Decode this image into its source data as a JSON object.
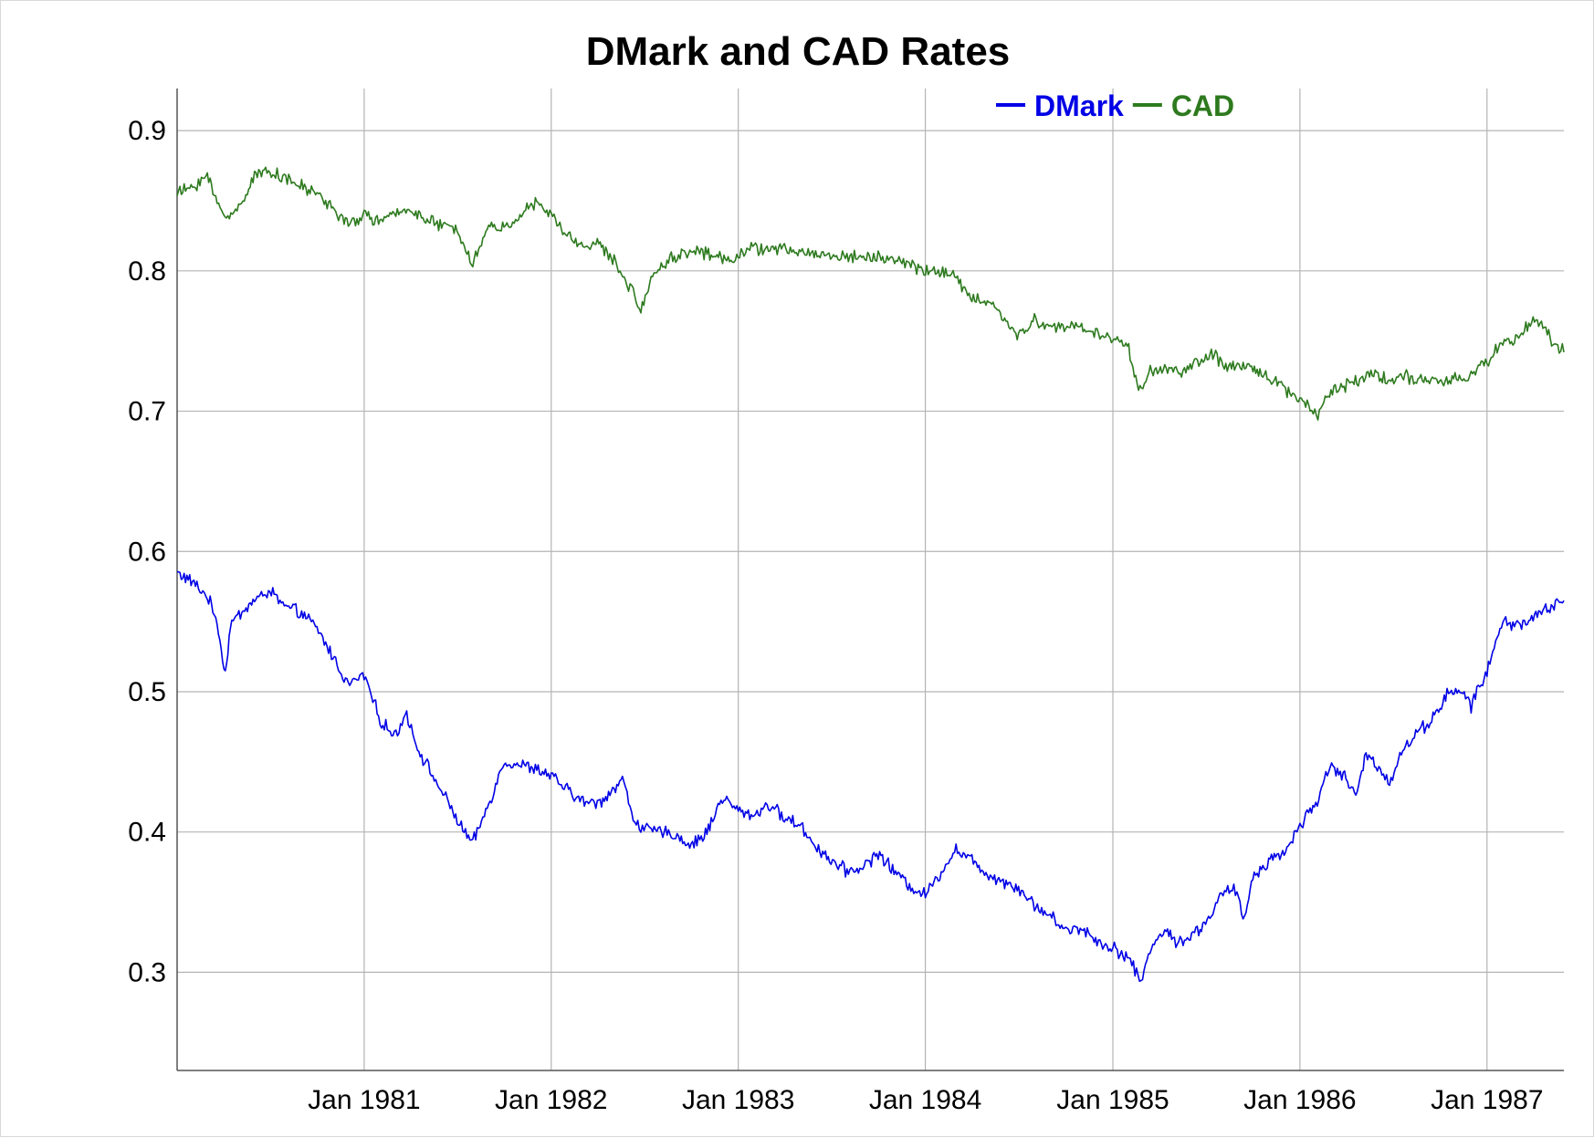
{
  "chart_data": {
    "type": "line",
    "title": "DMark and CAD Rates",
    "xlabel": "",
    "ylabel": "",
    "x_range": [
      "1980-01-02",
      "1987-05-31"
    ],
    "ylim": [
      0.23,
      0.93
    ],
    "y_ticks": [
      0.3,
      0.4,
      0.5,
      0.6,
      0.7,
      0.8,
      0.9
    ],
    "y_tick_labels": [
      "0.3",
      "0.4",
      "0.5",
      "0.6",
      "0.7",
      "0.8",
      "0.9"
    ],
    "x_ticks": [
      "1981-01-01",
      "1982-01-01",
      "1983-01-01",
      "1984-01-01",
      "1985-01-01",
      "1986-01-01",
      "1987-01-01"
    ],
    "x_tick_labels": [
      "Jan 1981",
      "Jan 1982",
      "Jan 1983",
      "Jan 1984",
      "Jan 1985",
      "Jan 1986",
      "Jan 1987"
    ],
    "grid": true,
    "legend_position": "top-right",
    "series": [
      {
        "name": "DMark",
        "color": "#0000e6",
        "points": [
          [
            "1980-01-02",
            0.585
          ],
          [
            "1980-02-01",
            0.578
          ],
          [
            "1980-03-01",
            0.568
          ],
          [
            "1980-03-20",
            0.55
          ],
          [
            "1980-04-05",
            0.512
          ],
          [
            "1980-04-15",
            0.548
          ],
          [
            "1980-05-10",
            0.558
          ],
          [
            "1980-06-01",
            0.565
          ],
          [
            "1980-07-01",
            0.572
          ],
          [
            "1980-08-01",
            0.56
          ],
          [
            "1980-09-01",
            0.556
          ],
          [
            "1980-10-01",
            0.545
          ],
          [
            "1980-11-01",
            0.525
          ],
          [
            "1980-12-01",
            0.505
          ],
          [
            "1981-01-01",
            0.512
          ],
          [
            "1981-02-01",
            0.48
          ],
          [
            "1981-03-01",
            0.468
          ],
          [
            "1981-03-25",
            0.485
          ],
          [
            "1981-04-15",
            0.46
          ],
          [
            "1981-05-15",
            0.44
          ],
          [
            "1981-06-15",
            0.42
          ],
          [
            "1981-07-15",
            0.4
          ],
          [
            "1981-08-01",
            0.392
          ],
          [
            "1981-09-01",
            0.42
          ],
          [
            "1981-10-01",
            0.45
          ],
          [
            "1981-11-01",
            0.448
          ],
          [
            "1981-12-01",
            0.445
          ],
          [
            "1982-01-01",
            0.44
          ],
          [
            "1982-02-01",
            0.43
          ],
          [
            "1982-03-01",
            0.422
          ],
          [
            "1982-04-01",
            0.42
          ],
          [
            "1982-05-01",
            0.43
          ],
          [
            "1982-05-20",
            0.438
          ],
          [
            "1982-06-10",
            0.41
          ],
          [
            "1982-07-01",
            0.402
          ],
          [
            "1982-08-01",
            0.4
          ],
          [
            "1982-09-01",
            0.398
          ],
          [
            "1982-10-01",
            0.39
          ],
          [
            "1982-11-01",
            0.4
          ],
          [
            "1982-12-01",
            0.425
          ],
          [
            "1983-01-01",
            0.415
          ],
          [
            "1983-02-01",
            0.412
          ],
          [
            "1983-03-01",
            0.42
          ],
          [
            "1983-04-01",
            0.41
          ],
          [
            "1983-05-01",
            0.405
          ],
          [
            "1983-06-01",
            0.39
          ],
          [
            "1983-07-01",
            0.38
          ],
          [
            "1983-08-01",
            0.372
          ],
          [
            "1983-09-01",
            0.375
          ],
          [
            "1983-10-01",
            0.385
          ],
          [
            "1983-11-01",
            0.372
          ],
          [
            "1983-12-01",
            0.362
          ],
          [
            "1984-01-01",
            0.355
          ],
          [
            "1984-02-01",
            0.372
          ],
          [
            "1984-03-01",
            0.388
          ],
          [
            "1984-04-01",
            0.38
          ],
          [
            "1984-05-01",
            0.37
          ],
          [
            "1984-06-01",
            0.365
          ],
          [
            "1984-07-01",
            0.36
          ],
          [
            "1984-08-01",
            0.348
          ],
          [
            "1984-09-01",
            0.34
          ],
          [
            "1984-10-01",
            0.33
          ],
          [
            "1984-11-01",
            0.332
          ],
          [
            "1984-12-01",
            0.322
          ],
          [
            "1985-01-01",
            0.318
          ],
          [
            "1985-02-01",
            0.31
          ],
          [
            "1985-02-25",
            0.293
          ],
          [
            "1985-03-20",
            0.322
          ],
          [
            "1985-04-15",
            0.33
          ],
          [
            "1985-05-01",
            0.322
          ],
          [
            "1985-06-01",
            0.325
          ],
          [
            "1985-07-01",
            0.335
          ],
          [
            "1985-08-01",
            0.355
          ],
          [
            "1985-08-25",
            0.36
          ],
          [
            "1985-09-15",
            0.338
          ],
          [
            "1985-10-01",
            0.368
          ],
          [
            "1985-11-01",
            0.38
          ],
          [
            "1985-12-01",
            0.385
          ],
          [
            "1986-01-01",
            0.405
          ],
          [
            "1986-02-01",
            0.42
          ],
          [
            "1986-03-01",
            0.448
          ],
          [
            "1986-04-01",
            0.438
          ],
          [
            "1986-04-20",
            0.425
          ],
          [
            "1986-05-10",
            0.455
          ],
          [
            "1986-06-01",
            0.448
          ],
          [
            "1986-06-25",
            0.435
          ],
          [
            "1986-07-15",
            0.455
          ],
          [
            "1986-08-15",
            0.47
          ],
          [
            "1986-09-15",
            0.48
          ],
          [
            "1986-10-15",
            0.498
          ],
          [
            "1986-11-15",
            0.5
          ],
          [
            "1986-12-01",
            0.49
          ],
          [
            "1987-01-01",
            0.515
          ],
          [
            "1987-02-01",
            0.55
          ],
          [
            "1987-03-01",
            0.548
          ],
          [
            "1987-04-01",
            0.552
          ],
          [
            "1987-05-01",
            0.56
          ],
          [
            "1987-05-31",
            0.565
          ]
        ]
      },
      {
        "name": "CAD",
        "color": "#2d7a1e",
        "points": [
          [
            "1980-01-02",
            0.855
          ],
          [
            "1980-02-01",
            0.86
          ],
          [
            "1980-03-01",
            0.868
          ],
          [
            "1980-03-20",
            0.848
          ],
          [
            "1980-04-10",
            0.838
          ],
          [
            "1980-05-01",
            0.845
          ],
          [
            "1980-06-01",
            0.868
          ],
          [
            "1980-07-01",
            0.872
          ],
          [
            "1980-08-01",
            0.865
          ],
          [
            "1980-09-01",
            0.86
          ],
          [
            "1980-10-01",
            0.855
          ],
          [
            "1980-11-01",
            0.845
          ],
          [
            "1980-12-01",
            0.832
          ],
          [
            "1981-01-01",
            0.84
          ],
          [
            "1981-02-01",
            0.835
          ],
          [
            "1981-03-01",
            0.84
          ],
          [
            "1981-04-01",
            0.845
          ],
          [
            "1981-05-01",
            0.836
          ],
          [
            "1981-06-01",
            0.832
          ],
          [
            "1981-07-01",
            0.83
          ],
          [
            "1981-08-01",
            0.805
          ],
          [
            "1981-09-01",
            0.832
          ],
          [
            "1981-10-01",
            0.83
          ],
          [
            "1981-11-01",
            0.84
          ],
          [
            "1981-12-01",
            0.848
          ],
          [
            "1982-01-01",
            0.84
          ],
          [
            "1982-02-01",
            0.825
          ],
          [
            "1982-03-01",
            0.818
          ],
          [
            "1982-04-01",
            0.82
          ],
          [
            "1982-05-01",
            0.808
          ],
          [
            "1982-06-01",
            0.79
          ],
          [
            "1982-06-25",
            0.772
          ],
          [
            "1982-07-15",
            0.795
          ],
          [
            "1982-08-15",
            0.808
          ],
          [
            "1982-09-15",
            0.812
          ],
          [
            "1982-10-15",
            0.815
          ],
          [
            "1982-11-15",
            0.81
          ],
          [
            "1982-12-15",
            0.808
          ],
          [
            "1983-01-15",
            0.815
          ],
          [
            "1983-02-15",
            0.816
          ],
          [
            "1983-04-01",
            0.815
          ],
          [
            "1983-06-01",
            0.812
          ],
          [
            "1983-08-01",
            0.81
          ],
          [
            "1983-10-01",
            0.81
          ],
          [
            "1983-12-01",
            0.805
          ],
          [
            "1984-01-01",
            0.8
          ],
          [
            "1984-02-01",
            0.8
          ],
          [
            "1984-03-01",
            0.795
          ],
          [
            "1984-04-01",
            0.78
          ],
          [
            "1984-05-01",
            0.778
          ],
          [
            "1984-06-01",
            0.768
          ],
          [
            "1984-07-01",
            0.752
          ],
          [
            "1984-08-01",
            0.765
          ],
          [
            "1984-09-01",
            0.76
          ],
          [
            "1984-10-01",
            0.76
          ],
          [
            "1984-11-01",
            0.76
          ],
          [
            "1984-12-01",
            0.755
          ],
          [
            "1985-01-01",
            0.752
          ],
          [
            "1985-02-01",
            0.745
          ],
          [
            "1985-02-20",
            0.715
          ],
          [
            "1985-03-15",
            0.728
          ],
          [
            "1985-04-15",
            0.73
          ],
          [
            "1985-05-15",
            0.728
          ],
          [
            "1985-06-15",
            0.735
          ],
          [
            "1985-07-15",
            0.74
          ],
          [
            "1985-08-15",
            0.73
          ],
          [
            "1985-09-15",
            0.732
          ],
          [
            "1985-10-15",
            0.728
          ],
          [
            "1985-11-15",
            0.722
          ],
          [
            "1985-12-15",
            0.712
          ],
          [
            "1986-01-15",
            0.705
          ],
          [
            "1986-02-05",
            0.698
          ],
          [
            "1986-02-25",
            0.712
          ],
          [
            "1986-03-25",
            0.718
          ],
          [
            "1986-04-25",
            0.722
          ],
          [
            "1986-05-25",
            0.728
          ],
          [
            "1986-06-25",
            0.722
          ],
          [
            "1986-07-25",
            0.725
          ],
          [
            "1986-08-25",
            0.722
          ],
          [
            "1986-09-25",
            0.72
          ],
          [
            "1986-10-25",
            0.722
          ],
          [
            "1986-12-01",
            0.725
          ],
          [
            "1987-01-01",
            0.735
          ],
          [
            "1987-02-01",
            0.75
          ],
          [
            "1987-03-01",
            0.752
          ],
          [
            "1987-04-01",
            0.765
          ],
          [
            "1987-04-20",
            0.762
          ],
          [
            "1987-05-10",
            0.748
          ],
          [
            "1987-05-31",
            0.742
          ]
        ]
      }
    ]
  }
}
